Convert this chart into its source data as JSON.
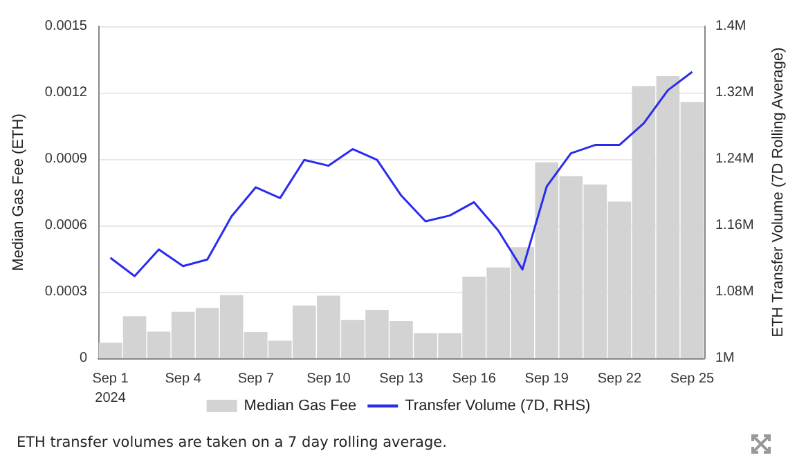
{
  "chart_data": {
    "type": "bar",
    "categories": [
      "Sep 1\n2024",
      null,
      null,
      "Sep 4",
      null,
      null,
      "Sep 7",
      null,
      null,
      "Sep 10",
      null,
      null,
      "Sep 13",
      null,
      null,
      "Sep 16",
      null,
      null,
      "Sep 19",
      null,
      null,
      "Sep 22",
      null,
      null,
      "Sep 25"
    ],
    "series": [
      {
        "name": "Median Gas Fee",
        "color": "#d3d3d3",
        "values": [
          7e-05,
          0.00019,
          0.00012,
          0.00021,
          0.000227,
          0.000285,
          0.000119,
          8e-05,
          0.000238,
          0.000283,
          0.000173,
          0.000219,
          0.000169,
          0.000113,
          0.000113,
          0.000369,
          0.00041,
          0.000502,
          0.000885,
          0.000823,
          0.000785,
          0.000708,
          0.00123,
          0.001275,
          0.001158
        ]
      },
      {
        "name": "Transfer Volume (7D, RHS)",
        "type": "line",
        "axis": "y2",
        "color": "#2b2bf0",
        "values": [
          1121000,
          1099000,
          1131000,
          1111000,
          1119000,
          1171000,
          1206000,
          1193000,
          1239000,
          1232000,
          1252000,
          1239000,
          1196000,
          1165000,
          1172000,
          1188000,
          1154000,
          1107000,
          1207000,
          1247000,
          1257000,
          1257000,
          1283000,
          1323000,
          1345000
        ]
      }
    ],
    "ylabel": "Median Gas Fee (ETH)",
    "y2label": "ETH Transfer Volume (7D Rolling Average)",
    "ylim": [
      0,
      0.0015
    ],
    "yticks": [
      0,
      0.0003,
      0.0006,
      0.0009,
      0.0012,
      0.0015
    ],
    "y2lim": [
      1000000,
      1400000
    ],
    "y2ticks": [
      {
        "value": 1000000,
        "label": "1M"
      },
      {
        "value": 1080000,
        "label": "1.08M"
      },
      {
        "value": 1160000,
        "label": "1.16M"
      },
      {
        "value": 1240000,
        "label": "1.24M"
      },
      {
        "value": 1320000,
        "label": "1.32M"
      },
      {
        "value": 1400000,
        "label": "1.4M"
      }
    ],
    "grid": "y",
    "legend": "bottom",
    "marker": "none",
    "line_style": "solid",
    "annotations": [
      "ETH transfer volumes are taken on a 7 day rolling average."
    ]
  }
}
